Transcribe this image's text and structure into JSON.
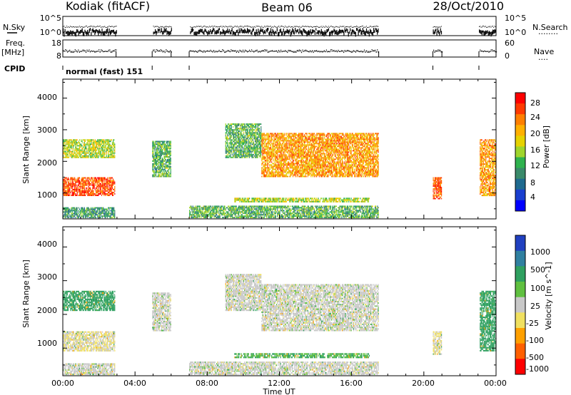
{
  "header": {
    "station": "Kodiak (fitACF)",
    "beam": "Beam 06",
    "date": "28/Oct/2010"
  },
  "top_strip": {
    "left_label": "N.Sky",
    "left_ticks": [
      "10^5",
      "10^0"
    ],
    "right_ticks": [
      "10^5",
      "10^0"
    ],
    "right_label": "N.Search",
    "dot_legend": "........"
  },
  "freq_strip": {
    "label_line1": "Freq.",
    "label_line2": "[MHz]",
    "left_ticks": [
      "18",
      "8"
    ],
    "right_ticks": [
      "60",
      "0"
    ],
    "right_label": "Nave",
    "dot_legend": "...."
  },
  "cpid": {
    "label": "CPID",
    "value": "normal (fast) 151"
  },
  "power_panel": {
    "ylabel": "Slant Range [km]",
    "yticks": [
      "4000",
      "3000",
      "2000",
      "1000"
    ],
    "colorbar_label": "Power [dB]",
    "colorbar_ticks": [
      "28",
      "24",
      "20",
      "16",
      "12",
      "8",
      "4"
    ],
    "colorbar_colors": [
      "#ff0000",
      "#ff3a00",
      "#ff7f00",
      "#ffb000",
      "#e6d200",
      "#9fd52c",
      "#2fb24e",
      "#3a8a6a",
      "#1f6a8f",
      "#1a3fcf",
      "#0000ff"
    ]
  },
  "velocity_panel": {
    "ylabel": "Slant Range [km]",
    "yticks": [
      "4000",
      "3000",
      "2000",
      "1000"
    ],
    "colorbar_label": "Velocity [m s^-1]",
    "colorbar_ticks": [
      "1000",
      "500",
      "100",
      "25",
      "-25",
      "-100",
      "-500",
      "-1000"
    ],
    "colorbar_colors": [
      "#2040c0",
      "#3080a0",
      "#2fa060",
      "#60c040",
      "#c8c8c8",
      "#f0e060",
      "#ffa000",
      "#ff6000",
      "#ff0000"
    ]
  },
  "xaxis": {
    "label": "Time UT",
    "ticks": [
      "00:00",
      "04:00",
      "08:00",
      "12:00",
      "16:00",
      "20:00",
      "00:00"
    ]
  },
  "chart_data": {
    "type": "heatmap",
    "title": "Kodiak (fitACF) Beam 06 28/Oct/2010",
    "xlabel": "Time UT",
    "ylabel": "Slant Range [km]",
    "x_range_hours": [
      0,
      24
    ],
    "y_range_km": [
      180,
      4600
    ],
    "operating_intervals_hours": [
      [
        0.0,
        2.95
      ],
      [
        4.95,
        6.0
      ],
      [
        7.0,
        17.5
      ],
      [
        20.5,
        21.0
      ],
      [
        23.05,
        24.0
      ]
    ],
    "series": [
      {
        "name": "Power [dB]",
        "range": [
          0,
          32
        ],
        "ticks": [
          4,
          8,
          12,
          16,
          20,
          24,
          28
        ]
      },
      {
        "name": "Velocity [m s^-1]",
        "ticks": [
          1000,
          500,
          100,
          25,
          -25,
          -100,
          -500,
          -1000
        ]
      }
    ],
    "echo_regions": [
      {
        "t": [
          0.0,
          2.9
        ],
        "r": [
          900,
          1500
        ],
        "power_db": 28,
        "velocity": -25
      },
      {
        "t": [
          0.0,
          2.9
        ],
        "r": [
          2100,
          2700
        ],
        "power_db": 18,
        "velocity": 300
      },
      {
        "t": [
          0.0,
          2.9
        ],
        "r": [
          200,
          550
        ],
        "power_db": 12,
        "velocity": 0
      },
      {
        "t": [
          4.95,
          6.0
        ],
        "r": [
          1500,
          2650
        ],
        "power_db": 14,
        "velocity": 0
      },
      {
        "t": [
          7.0,
          17.5
        ],
        "r": [
          200,
          600
        ],
        "power_db": 14,
        "velocity": 0
      },
      {
        "t": [
          9.0,
          11.0
        ],
        "r": [
          2100,
          3200
        ],
        "power_db": 14,
        "velocity": 0
      },
      {
        "t": [
          11.0,
          17.5
        ],
        "r": [
          1500,
          2900
        ],
        "power_db": 24,
        "velocity": 0
      },
      {
        "t": [
          9.5,
          17.0
        ],
        "r": [
          700,
          850
        ],
        "power_db": 18,
        "velocity": 100
      },
      {
        "t": [
          20.5,
          21.0
        ],
        "r": [
          800,
          1500
        ],
        "power_db": 28,
        "velocity": -25
      },
      {
        "t": [
          23.1,
          24.0
        ],
        "r": [
          900,
          2700
        ],
        "power_db": 24,
        "velocity": 300
      }
    ]
  }
}
